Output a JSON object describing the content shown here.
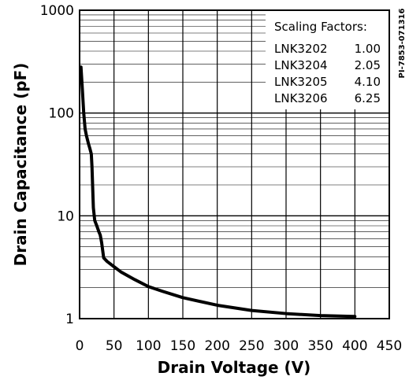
{
  "chart_data": {
    "type": "line",
    "title": "",
    "xlabel": "Drain Voltage (V)",
    "ylabel": "Drain Capacitance (pF)",
    "xlim": [
      0,
      450
    ],
    "ylim": [
      1,
      1000
    ],
    "yscale": "log",
    "grid": true,
    "x_ticks": [
      0,
      50,
      100,
      150,
      200,
      250,
      300,
      350,
      400,
      450
    ],
    "x_tick_labels": [
      "0",
      "50",
      "100",
      "150",
      "200",
      "250",
      "300",
      "350",
      "400",
      "450"
    ],
    "y_ticks": [
      1,
      10,
      100,
      1000
    ],
    "y_tick_labels": [
      "1",
      "10",
      "100",
      "1000"
    ],
    "series": [
      {
        "color": "#000000",
        "x": [
          2,
          4,
          6,
          8,
          10,
          13,
          15,
          17,
          18,
          20,
          22,
          25,
          28,
          30,
          32,
          35,
          40,
          50,
          60,
          80,
          100,
          120,
          150,
          200,
          250,
          300,
          350,
          400
        ],
        "y": [
          280,
          170,
          100,
          70,
          60,
          50,
          45,
          40,
          30,
          12,
          9,
          8,
          7,
          6.5,
          5.5,
          3.9,
          3.6,
          3.2,
          2.85,
          2.4,
          2.05,
          1.85,
          1.6,
          1.35,
          1.2,
          1.12,
          1.07,
          1.05
        ]
      }
    ],
    "legend": {
      "title": "Scaling Factors:",
      "position": "top-right",
      "rows": [
        {
          "part": "LNK3202",
          "factor": "1.00"
        },
        {
          "part": "LNK3204",
          "factor": "2.05"
        },
        {
          "part": "LNK3205",
          "factor": "4.10"
        },
        {
          "part": "LNK3206",
          "factor": "6.25"
        }
      ]
    }
  },
  "figure_code": "PI-7853-071316",
  "colors": {
    "line": "#000000",
    "grid": "#000000",
    "background": "#ffffff"
  }
}
